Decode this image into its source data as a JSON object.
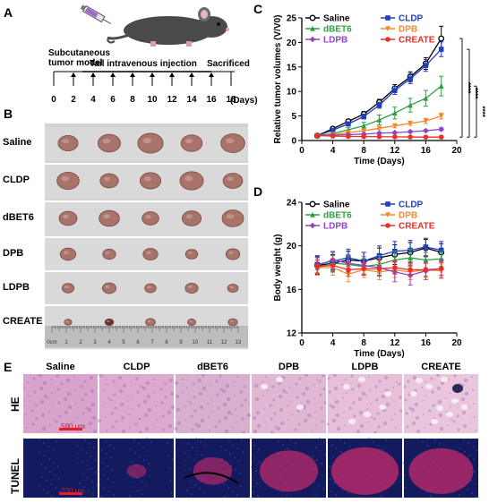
{
  "panels": {
    "a": "A",
    "b": "B",
    "c": "C",
    "d": "D",
    "e": "E"
  },
  "schedule": {
    "model_label_line1": "Subcutaneous",
    "model_label_line2": "tumor model",
    "injection_label": "Tail intravenous injection",
    "sacrificed_label": "Sacrificed",
    "days": [
      "0",
      "2",
      "4",
      "6",
      "8",
      "10",
      "12",
      "14",
      "16",
      "18"
    ],
    "unit": "(Days)"
  },
  "tumor_photo": {
    "rows": [
      "Saline",
      "CLDP",
      "dBET6",
      "DPB",
      "LDPB",
      "CREATE"
    ],
    "ruler": [
      "0cm",
      "1",
      "2",
      "3",
      "4",
      "5",
      "6",
      "7",
      "8",
      "9",
      "10",
      "11",
      "12",
      "13"
    ]
  },
  "groups": [
    {
      "name": "Saline",
      "color": "#000000",
      "marker": "circle-open"
    },
    {
      "name": "CLDP",
      "color": "#1f3fbf",
      "marker": "square"
    },
    {
      "name": "dBET6",
      "color": "#2e9e44",
      "marker": "triangle"
    },
    {
      "name": "DPB",
      "color": "#f28a2e",
      "marker": "triangle-down"
    },
    {
      "name": "LDPB",
      "color": "#8b46c8",
      "marker": "diamond"
    },
    {
      "name": "CREATE",
      "color": "#e8302a",
      "marker": "circle"
    }
  ],
  "chart_data": [
    {
      "type": "line",
      "ylabel": "Relative tumor volumes (V/V0)",
      "xlabel": "Time (Days)",
      "xlim": [
        0,
        20
      ],
      "ylim": [
        0,
        25
      ],
      "xticks": [
        "0",
        "4",
        "8",
        "12",
        "16",
        "20"
      ],
      "yticks": [
        "0",
        "5",
        "10",
        "15",
        "20",
        "25"
      ],
      "x": [
        2,
        4,
        6,
        8,
        10,
        12,
        14,
        16,
        18
      ],
      "series": [
        {
          "name": "Saline",
          "values": [
            1,
            2.4,
            3.9,
            5.4,
            7.8,
            10.6,
            13.0,
            15.7,
            20.8
          ],
          "err": [
            0.1,
            0.3,
            0.4,
            0.5,
            0.6,
            0.8,
            1.0,
            1.2,
            2.5
          ]
        },
        {
          "name": "CLDP",
          "values": [
            1,
            2.1,
            3.4,
            4.9,
            7.2,
            10.2,
            12.6,
            15.3,
            18.6
          ],
          "err": [
            0.1,
            0.3,
            0.4,
            0.5,
            0.6,
            0.8,
            1.0,
            1.2,
            1.5
          ]
        },
        {
          "name": "dBET6",
          "values": [
            1,
            1.4,
            2.2,
            3.0,
            4.2,
            5.6,
            7.2,
            8.6,
            11.1
          ],
          "err": [
            0.1,
            0.3,
            0.5,
            0.7,
            1.0,
            1.2,
            1.4,
            1.6,
            2.0
          ]
        },
        {
          "name": "DPB",
          "values": [
            1,
            1.2,
            1.6,
            2.0,
            2.5,
            3.0,
            3.5,
            4.0,
            5.0
          ],
          "err": [
            0.1,
            0.2,
            0.2,
            0.3,
            0.3,
            0.4,
            0.4,
            0.5,
            0.6
          ]
        },
        {
          "name": "LDPB",
          "values": [
            1,
            1.1,
            1.2,
            1.3,
            1.5,
            1.6,
            1.8,
            2.0,
            2.3
          ],
          "err": [
            0.1,
            0.1,
            0.1,
            0.1,
            0.2,
            0.2,
            0.2,
            0.2,
            0.3
          ]
        },
        {
          "name": "CREATE",
          "values": [
            1,
            0.9,
            0.85,
            0.8,
            0.78,
            0.75,
            0.72,
            0.7,
            0.7
          ],
          "err": [
            0.05,
            0.05,
            0.05,
            0.05,
            0.05,
            0.05,
            0.05,
            0.05,
            0.05
          ]
        }
      ],
      "significance": [
        "****",
        "****",
        "****"
      ]
    },
    {
      "type": "line",
      "ylabel": "Body weight (g)",
      "xlabel": "Time (Days)",
      "xlim": [
        0,
        20
      ],
      "ylim": [
        12,
        24
      ],
      "xticks": [
        "0",
        "4",
        "8",
        "12",
        "16",
        "20"
      ],
      "yticks": [
        "12",
        "16",
        "20",
        "24"
      ],
      "x": [
        2,
        4,
        6,
        8,
        10,
        12,
        14,
        16,
        18
      ],
      "series": [
        {
          "name": "Saline",
          "values": [
            18.2,
            18.4,
            18.7,
            18.6,
            18.9,
            19.2,
            19.4,
            19.8,
            19.4
          ],
          "err": [
            0.8,
            0.8,
            0.8,
            0.8,
            0.9,
            0.9,
            0.9,
            0.8,
            0.8
          ]
        },
        {
          "name": "CLDP",
          "values": [
            18.3,
            18.6,
            18.9,
            18.6,
            19.1,
            19.5,
            19.6,
            19.9,
            19.6
          ],
          "err": [
            0.8,
            0.8,
            0.8,
            0.8,
            0.9,
            0.9,
            0.9,
            0.8,
            0.8
          ]
        },
        {
          "name": "dBET6",
          "values": [
            18.0,
            18.4,
            18.3,
            18.1,
            18.3,
            18.7,
            18.9,
            18.7,
            18.8
          ],
          "err": [
            0.7,
            0.7,
            0.7,
            0.7,
            0.8,
            0.8,
            0.8,
            0.7,
            0.7
          ]
        },
        {
          "name": "DPB",
          "values": [
            18.0,
            18.0,
            17.4,
            17.8,
            17.6,
            17.8,
            17.6,
            17.8,
            17.7
          ],
          "err": [
            0.7,
            0.7,
            0.7,
            0.7,
            0.7,
            0.7,
            0.7,
            0.7,
            0.7
          ]
        },
        {
          "name": "LDPB",
          "values": [
            18.2,
            18.7,
            18.4,
            18.2,
            18.0,
            17.6,
            17.3,
            17.7,
            17.9
          ],
          "err": [
            0.7,
            0.8,
            0.8,
            0.8,
            0.8,
            0.9,
            0.9,
            0.8,
            0.8
          ]
        },
        {
          "name": "CREATE",
          "values": [
            18.1,
            18.2,
            17.8,
            17.9,
            17.9,
            18.0,
            17.8,
            17.8,
            17.9
          ],
          "err": [
            0.6,
            0.6,
            0.6,
            0.6,
            0.6,
            0.6,
            0.6,
            0.6,
            0.6
          ]
        }
      ]
    }
  ],
  "histology": {
    "columns": [
      "Saline",
      "CLDP",
      "dBET6",
      "DPB",
      "LDPB",
      "CREATE"
    ],
    "rows": [
      "HE",
      "TUNEL"
    ],
    "scale_he": "500 μm",
    "scale_tunel": "200 μm"
  }
}
